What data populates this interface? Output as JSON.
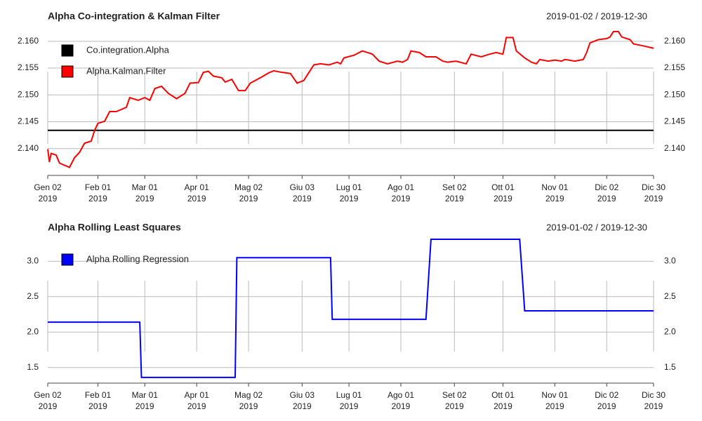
{
  "chart_data": [
    {
      "type": "line",
      "title": "Alpha Co-integration & Kalman Filter",
      "date_range": "2019-01-02 / 2019-12-30",
      "xlim": [
        "2019-01-02",
        "2019-12-30"
      ],
      "xticks": [
        {
          "value": "2019-01-02",
          "label": "Gen 02\n2019"
        },
        {
          "value": "2019-02-01",
          "label": "Feb 01\n2019"
        },
        {
          "value": "2019-03-01",
          "label": "Mar 01\n2019"
        },
        {
          "value": "2019-04-01",
          "label": "Apr 01\n2019"
        },
        {
          "value": "2019-05-02",
          "label": "Mag 02\n2019"
        },
        {
          "value": "2019-06-03",
          "label": "Giu 03\n2019"
        },
        {
          "value": "2019-07-01",
          "label": "Lug 01\n2019"
        },
        {
          "value": "2019-08-01",
          "label": "Ago 01\n2019"
        },
        {
          "value": "2019-09-02",
          "label": "Set 02\n2019"
        },
        {
          "value": "2019-10-01",
          "label": "Ott 01\n2019"
        },
        {
          "value": "2019-11-01",
          "label": "Nov 01\n2019"
        },
        {
          "value": "2019-12-02",
          "label": "Dic 02\n2019"
        },
        {
          "value": "2019-12-30",
          "label": "Dic 30\n2019"
        }
      ],
      "ylim": [
        2.135,
        2.1622
      ],
      "yticks": [
        {
          "value": 2.14,
          "label": "2.140"
        },
        {
          "value": 2.145,
          "label": "2.145"
        },
        {
          "value": 2.15,
          "label": "2.150"
        },
        {
          "value": 2.155,
          "label": "2.155"
        },
        {
          "value": 2.16,
          "label": "2.160"
        }
      ],
      "grid": true,
      "legend": "topleft",
      "series": [
        {
          "name": "Co.integration.Alpha",
          "color": "#000000",
          "x": [
            "2019-01-02",
            "2019-12-30"
          ],
          "values": [
            2.1434,
            2.1434
          ]
        },
        {
          "name": "Alpha.Kalman.Filter",
          "color": "#ff0000",
          "x": [
            "2019-01-02",
            "2019-01-03",
            "2019-01-04",
            "2019-01-07",
            "2019-01-09",
            "2019-01-15",
            "2019-01-18",
            "2019-01-21",
            "2019-01-24",
            "2019-01-28",
            "2019-01-30",
            "2019-02-01",
            "2019-02-05",
            "2019-02-08",
            "2019-02-12",
            "2019-02-18",
            "2019-02-20",
            "2019-02-25",
            "2019-03-01",
            "2019-03-04",
            "2019-03-07",
            "2019-03-11",
            "2019-03-15",
            "2019-03-20",
            "2019-03-25",
            "2019-03-28",
            "2019-04-02",
            "2019-04-05",
            "2019-04-08",
            "2019-04-11",
            "2019-04-16",
            "2019-04-18",
            "2019-04-22",
            "2019-04-26",
            "2019-04-30",
            "2019-05-03",
            "2019-05-09",
            "2019-05-14",
            "2019-05-17",
            "2019-05-22",
            "2019-05-27",
            "2019-05-31",
            "2019-06-04",
            "2019-06-10",
            "2019-06-14",
            "2019-06-19",
            "2019-06-24",
            "2019-06-26",
            "2019-06-28",
            "2019-07-04",
            "2019-07-09",
            "2019-07-15",
            "2019-07-19",
            "2019-07-24",
            "2019-07-30",
            "2019-08-02",
            "2019-08-05",
            "2019-08-07",
            "2019-08-12",
            "2019-08-16",
            "2019-08-22",
            "2019-08-26",
            "2019-08-29",
            "2019-09-03",
            "2019-09-09",
            "2019-09-12",
            "2019-09-18",
            "2019-09-23",
            "2019-09-27",
            "2019-10-01",
            "2019-10-03",
            "2019-10-07",
            "2019-10-09",
            "2019-10-14",
            "2019-10-18",
            "2019-10-21",
            "2019-10-23",
            "2019-10-28",
            "2019-11-01",
            "2019-11-05",
            "2019-11-07",
            "2019-11-13",
            "2019-11-18",
            "2019-11-20",
            "2019-11-22",
            "2019-11-27",
            "2019-12-02",
            "2019-12-04",
            "2019-12-06",
            "2019-12-09",
            "2019-12-11",
            "2019-12-16",
            "2019-12-18",
            "2019-12-23",
            "2019-12-30"
          ],
          "values": [
            2.1399,
            2.1375,
            2.1391,
            2.1388,
            2.1373,
            2.1365,
            2.1383,
            2.1393,
            2.141,
            2.1414,
            2.1434,
            2.1447,
            2.1451,
            2.1469,
            2.1469,
            2.1477,
            2.1495,
            2.149,
            2.1495,
            2.149,
            2.1512,
            2.1516,
            2.1503,
            2.1493,
            2.1503,
            2.1522,
            2.1523,
            2.1542,
            2.1544,
            2.1535,
            2.1532,
            2.1524,
            2.1529,
            2.1508,
            2.1508,
            2.1522,
            2.1532,
            2.1541,
            2.1545,
            2.1542,
            2.154,
            2.1522,
            2.1527,
            2.1556,
            2.1558,
            2.1556,
            2.1561,
            2.1558,
            2.1569,
            2.1574,
            2.1582,
            2.1576,
            2.1563,
            2.1558,
            2.1563,
            2.1561,
            2.1566,
            2.1582,
            2.1579,
            2.1571,
            2.1571,
            2.1563,
            2.1561,
            2.1563,
            2.1558,
            2.1576,
            2.1571,
            2.1576,
            2.1579,
            2.1576,
            2.1607,
            2.1607,
            2.1582,
            2.1569,
            2.1561,
            2.1558,
            2.1566,
            2.1563,
            2.1565,
            2.1563,
            2.1566,
            2.1563,
            2.1566,
            2.1579,
            2.1597,
            2.1603,
            2.1605,
            2.1608,
            2.1618,
            2.1618,
            2.1608,
            2.1603,
            2.1595,
            2.1592,
            2.1587
          ]
        }
      ]
    },
    {
      "type": "line",
      "title": "Alpha Rolling Least Squares",
      "date_range": "2019-01-02 / 2019-12-30",
      "xlim": [
        "2019-01-02",
        "2019-12-30"
      ],
      "xticks": [
        {
          "value": "2019-01-02",
          "label": "Gen 02\n2019"
        },
        {
          "value": "2019-02-01",
          "label": "Feb 01\n2019"
        },
        {
          "value": "2019-03-01",
          "label": "Mar 01\n2019"
        },
        {
          "value": "2019-04-01",
          "label": "Apr 01\n2019"
        },
        {
          "value": "2019-05-02",
          "label": "Mag 02\n2019"
        },
        {
          "value": "2019-06-03",
          "label": "Giu 03\n2019"
        },
        {
          "value": "2019-07-01",
          "label": "Lug 01\n2019"
        },
        {
          "value": "2019-08-01",
          "label": "Ago 01\n2019"
        },
        {
          "value": "2019-09-02",
          "label": "Set 02\n2019"
        },
        {
          "value": "2019-10-01",
          "label": "Ott 01\n2019"
        },
        {
          "value": "2019-11-01",
          "label": "Nov 01\n2019"
        },
        {
          "value": "2019-12-02",
          "label": "Dic 02\n2019"
        },
        {
          "value": "2019-12-30",
          "label": "Dic 30\n2019"
        }
      ],
      "ylim": [
        1.28,
        3.32
      ],
      "yticks": [
        1.5,
        {
          "value": 2,
          "label": "2.0"
        },
        2.5,
        {
          "value": 3,
          "label": "3.0"
        }
      ],
      "grid": true,
      "legend": "topleft",
      "series": [
        {
          "name": "Alpha Rolling Regression",
          "color": "#0000ff",
          "x": [
            "2019-01-02",
            "2019-02-26",
            "2019-02-27",
            "2019-04-24",
            "2019-04-25",
            "2019-06-20",
            "2019-06-21",
            "2019-08-16",
            "2019-08-19",
            "2019-10-11",
            "2019-10-14",
            "2019-12-30"
          ],
          "values": [
            2.14,
            2.14,
            1.36,
            1.36,
            3.05,
            3.05,
            2.18,
            2.18,
            3.31,
            3.31,
            2.3,
            2.3
          ]
        }
      ]
    }
  ]
}
